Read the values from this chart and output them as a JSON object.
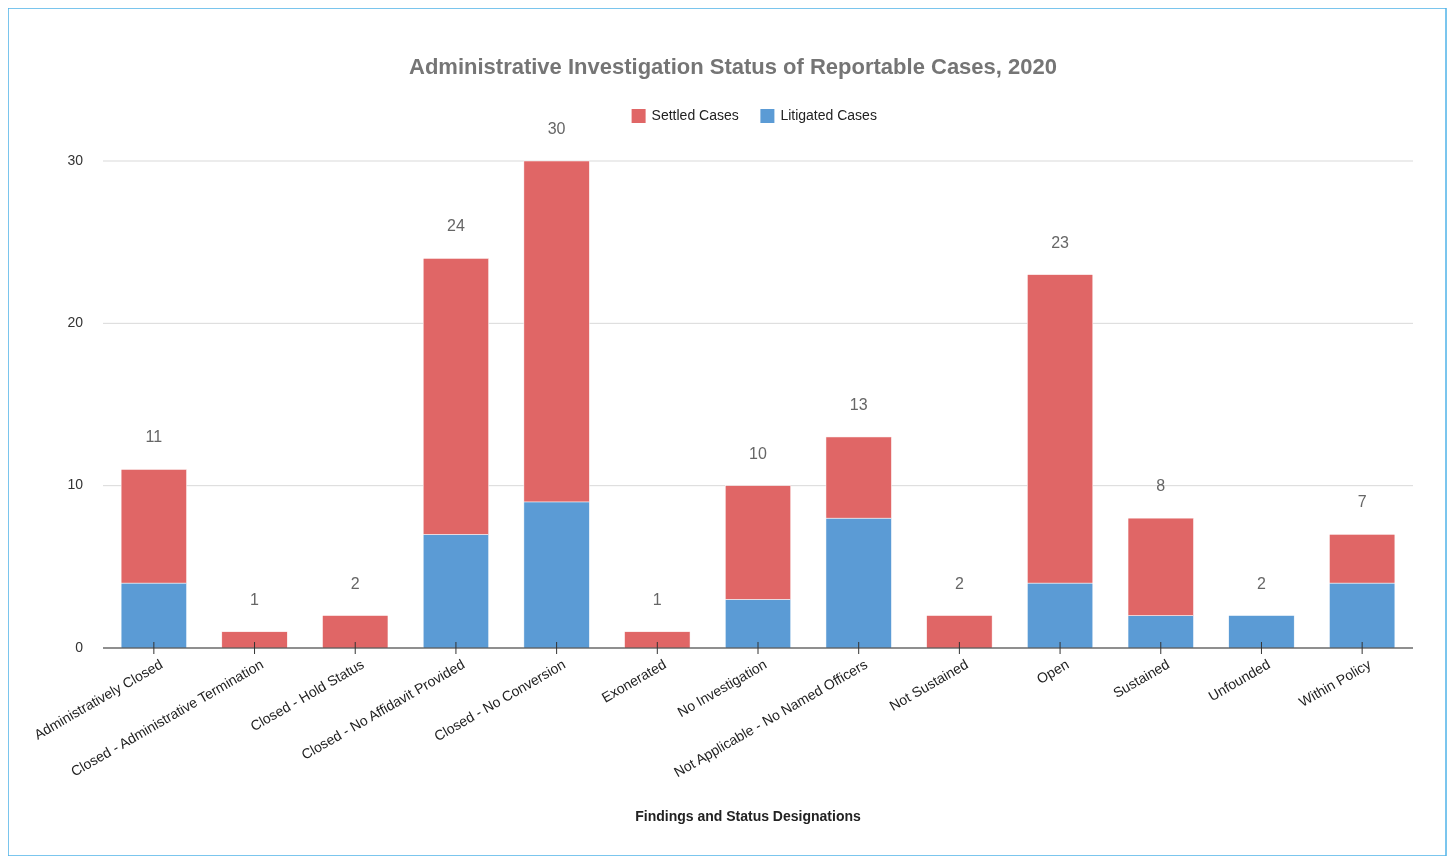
{
  "chart_data": {
    "type": "bar",
    "stacked": true,
    "title": "Administrative Investigation Status of Reportable Cases, 2020",
    "xlabel": "Findings and Status Designations",
    "categories": [
      "Administratively Closed",
      "Closed - Administrative Termination",
      "Closed - Hold Status",
      "Closed - No Affidavit Provided",
      "Closed - No Conversion",
      "Exonerated",
      "No Investigation",
      "Not Applicable - No Named Officers",
      "Not Sustained",
      "Open",
      "Sustained",
      "Unfounded",
      "Within Policy"
    ],
    "series": [
      {
        "name": "Litigated Cases",
        "color": "#5b9bd5",
        "values": [
          4,
          0,
          0,
          7,
          9,
          0,
          3,
          8,
          0,
          4,
          2,
          2,
          4
        ]
      },
      {
        "name": "Settled Cases",
        "color": "#e06666",
        "values": [
          7,
          1,
          2,
          17,
          21,
          1,
          7,
          5,
          2,
          19,
          6,
          0,
          3
        ]
      }
    ],
    "totals": [
      "11",
      "1",
      "2",
      "24",
      "30",
      "1",
      "10",
      "13",
      "2",
      "23",
      "8",
      "2",
      "7"
    ],
    "ylim": [
      0,
      30
    ],
    "yticks": [
      0,
      10,
      20,
      30
    ],
    "grid": "y",
    "legend": "top"
  }
}
